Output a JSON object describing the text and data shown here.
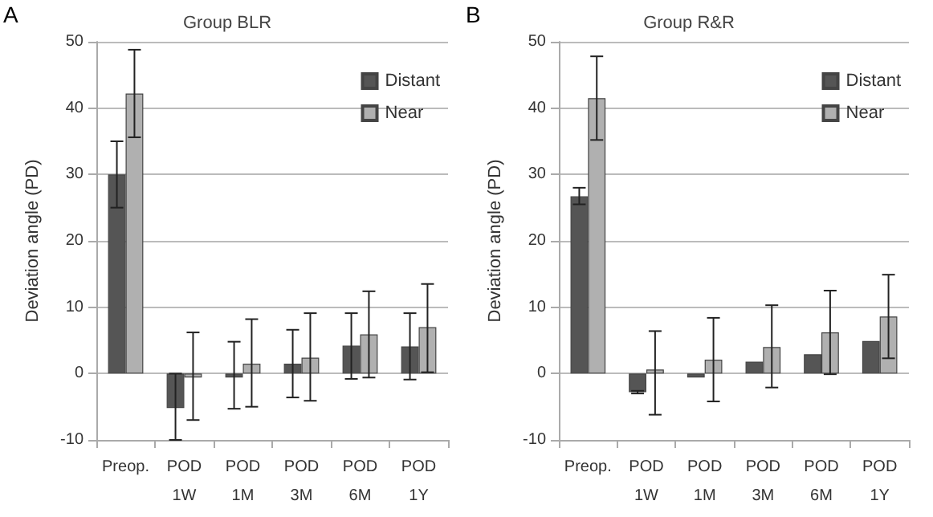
{
  "chart_data": [
    {
      "type": "bar",
      "title": "Group BLR",
      "ylabel": "Deviation angle (PD)",
      "annotations": [
        "A"
      ],
      "categories": [
        "Preop.",
        "POD\n1W",
        "POD\n1M",
        "POD\n3M",
        "POD\n6M",
        "POD\n1Y"
      ],
      "series": [
        {
          "name": "Distant",
          "color": "#555555",
          "values": [
            30,
            -5.2,
            -0.6,
            1.5,
            4.2,
            4.1
          ],
          "errors": [
            [
              25,
              35
            ],
            [
              -10,
              0
            ],
            [
              -5.3,
              4.8
            ],
            [
              -3.6,
              6.6
            ],
            [
              -0.8,
              9.1
            ],
            [
              -0.9,
              9.1
            ]
          ]
        },
        {
          "name": "Near",
          "color": "#b0b0b0",
          "values": [
            42.2,
            -0.6,
            1.5,
            2.4,
            5.9,
            7
          ],
          "errors": [
            [
              35.6,
              48.8
            ],
            [
              -7,
              6.2
            ],
            [
              -5,
              8.2
            ],
            [
              -4.1,
              9.1
            ],
            [
              -0.6,
              12.4
            ],
            [
              0.2,
              13.5
            ]
          ]
        }
      ],
      "ylim": [
        -10,
        50
      ],
      "yticks": [
        -10,
        0,
        10,
        20,
        30,
        40,
        50
      ],
      "grid": "y",
      "legend": "top right"
    },
    {
      "type": "bar",
      "title": "Group R&R",
      "ylabel": "Deviation angle (PD)",
      "annotations": [
        "B"
      ],
      "categories": [
        "Preop.",
        "POD\n1W",
        "POD\n1M",
        "POD\n3M",
        "POD\n6M",
        "POD\n1Y"
      ],
      "series": [
        {
          "name": "Distant",
          "color": "#555555",
          "values": [
            26.7,
            -2.8,
            -0.6,
            1.8,
            2.9,
            4.9
          ],
          "errors": [
            [
              25.5,
              28
            ],
            [
              -3,
              -2.6
            ],
            null,
            null,
            null,
            null
          ]
        },
        {
          "name": "Near",
          "color": "#b0b0b0",
          "values": [
            41.5,
            0.6,
            2.1,
            4,
            6.2,
            8.6
          ],
          "errors": [
            [
              35.2,
              47.8
            ],
            [
              -6.2,
              6.4
            ],
            [
              -4.2,
              8.4
            ],
            [
              -2.1,
              10.3
            ],
            [
              -0.1,
              12.5
            ],
            [
              2.3,
              14.9
            ]
          ]
        }
      ],
      "ylim": [
        -10,
        50
      ],
      "yticks": [
        -10,
        0,
        10,
        20,
        30,
        40,
        50
      ],
      "grid": "y",
      "legend": "top right"
    }
  ]
}
